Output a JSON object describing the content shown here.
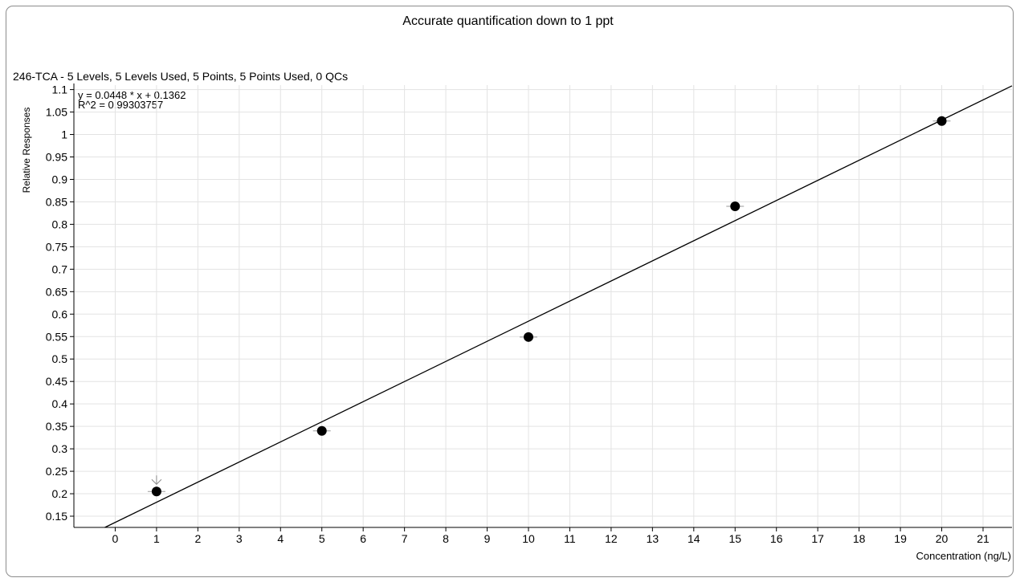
{
  "chart_data": {
    "type": "scatter",
    "title": "Accurate quantification down to 1 ppt",
    "subtitle": "246-TCA - 5 Levels, 5 Levels Used, 5 Points, 5 Points Used, 0 QCs",
    "xlabel": "Concentration (ng/L)",
    "ylabel": "Relative Responses",
    "equation": "y = 0.0448 * x  + 0.1362",
    "r_squared": "R^2 = 0.99303757",
    "xlim": [
      -1,
      21.7
    ],
    "ylim": [
      0.125,
      1.11
    ],
    "x_ticks": [
      0,
      1,
      2,
      3,
      4,
      5,
      6,
      7,
      8,
      9,
      10,
      11,
      12,
      13,
      14,
      15,
      16,
      17,
      18,
      19,
      20,
      21
    ],
    "y_ticks": [
      "0.15",
      "0.2",
      "0.25",
      "0.3",
      "0.35",
      "0.4",
      "0.45",
      "0.5",
      "0.55",
      "0.6",
      "0.65",
      "0.7",
      "0.75",
      "0.8",
      "0.85",
      "0.9",
      "0.95",
      "1",
      "1.05",
      "1.1"
    ],
    "grid": true,
    "series": [
      {
        "points": [
          {
            "x": 1,
            "y": 0.205
          },
          {
            "x": 5,
            "y": 0.34
          },
          {
            "x": 10,
            "y": 0.549
          },
          {
            "x": 15,
            "y": 0.84
          },
          {
            "x": 20,
            "y": 1.03
          }
        ],
        "marker_color": "#000000"
      }
    ],
    "fit_line": {
      "slope": 0.0448,
      "intercept": 0.1362,
      "color": "#000000"
    },
    "annotation": {
      "type": "arrow",
      "x": 1,
      "note_color": "#8c8c8c"
    }
  }
}
